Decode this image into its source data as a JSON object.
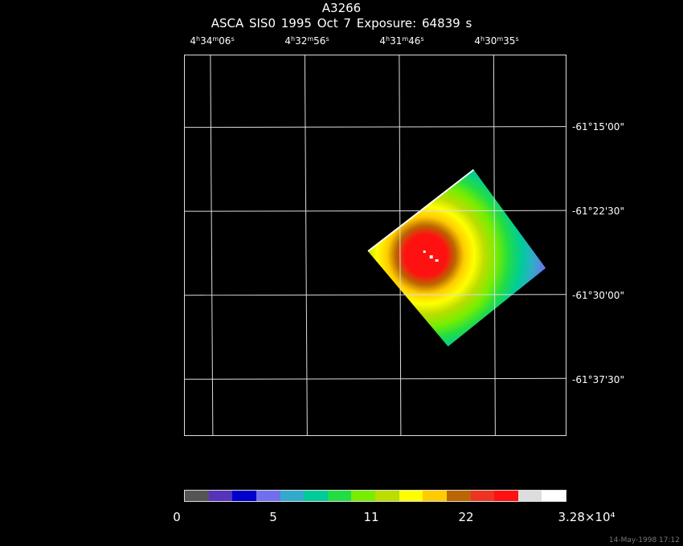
{
  "header": {
    "object": "A3266",
    "line2": "ASCA SIS0   1995 Oct  7    Exposure: 64839 s"
  },
  "axes": {
    "ra_labels": [
      {
        "h": "4",
        "m": "34",
        "s": "06"
      },
      {
        "h": "4",
        "m": "32",
        "s": "56"
      },
      {
        "h": "4",
        "m": "31",
        "s": "46"
      },
      {
        "h": "4",
        "m": "30",
        "s": "35"
      }
    ],
    "dec_labels": [
      "-61°15'00\"",
      "-61°22'30\"",
      "-61°30'00\"",
      "-61°37'30\""
    ]
  },
  "colorbar": {
    "colors": [
      "#555555",
      "#5533bb",
      "#0000cc",
      "#6f6ff0",
      "#33aacc",
      "#00cc99",
      "#22dd44",
      "#77ee00",
      "#bbdd00",
      "#ffff00",
      "#ffcc00",
      "#bb6600",
      "#ee3322",
      "#ff1111",
      "#dddddd",
      "#ffffff"
    ],
    "labels": [
      "0",
      "5",
      "11",
      "22",
      "3.28×10⁴"
    ]
  },
  "timestamp": "14-May-1998 17:12"
}
